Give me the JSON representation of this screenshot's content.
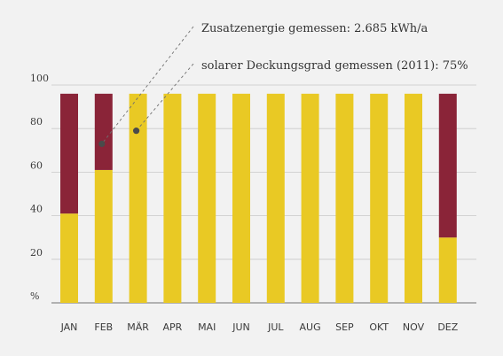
{
  "chart_data": {
    "type": "bar",
    "stacked": true,
    "categories": [
      "JAN",
      "FEB",
      "MÄR",
      "APR",
      "MAI",
      "JUN",
      "JUL",
      "AUG",
      "SEP",
      "OKT",
      "NOV",
      "DEZ"
    ],
    "series": [
      {
        "color": "#e9c924",
        "values": [
          41,
          61,
          96,
          96,
          96,
          96,
          96,
          96,
          96,
          96,
          96,
          30
        ]
      },
      {
        "color": "#8a2438",
        "values": [
          55,
          35,
          0,
          0,
          0,
          0,
          0,
          0,
          0,
          0,
          0,
          66
        ]
      }
    ],
    "y_ticks": [
      "%",
      "20",
      "40",
      "60",
      "80",
      "100"
    ],
    "ylim": [
      0,
      100
    ],
    "grid": true,
    "annotations": [
      {
        "text": "Zusatzenergie gemessen: 2.685 kWh/a",
        "target_category": "FEB",
        "target_value": 73
      },
      {
        "text": "solarer Deckungsgrad gemessen (2011): 75%",
        "target_category": "MÄR",
        "target_value": 79
      }
    ]
  },
  "colors": {
    "background": "#f2f2f2",
    "gridline": "#c8c8c8",
    "axis": "#8c8c8c",
    "marker": "#4a4a4a"
  }
}
